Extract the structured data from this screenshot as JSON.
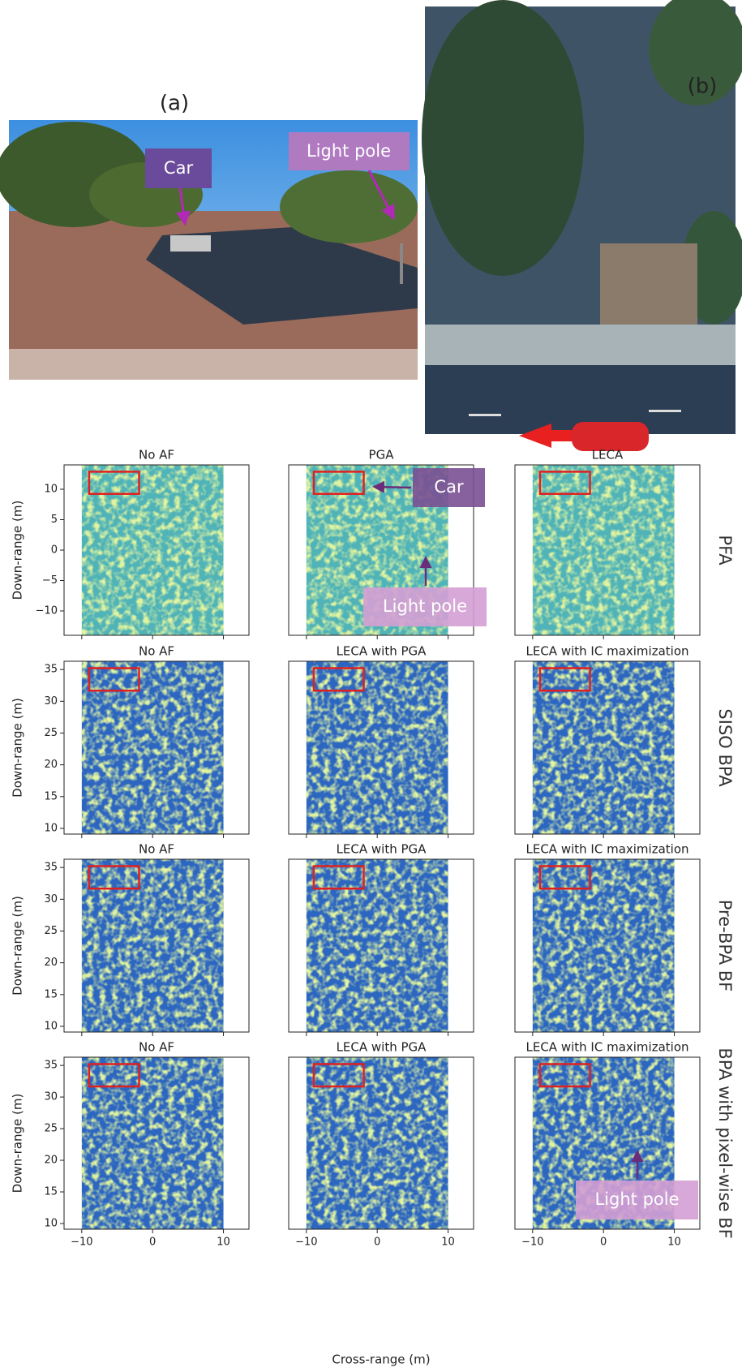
{
  "photos": {
    "a": {
      "label": "(a)",
      "annotations": [
        "Car",
        "Light pole"
      ]
    },
    "b": {
      "label": "(b)"
    }
  },
  "xlabel": "Cross-range (m)",
  "ylabel": "Down-range (m)",
  "xlim": [
    -12.5,
    13.6
  ],
  "xticks": [
    {
      "value": -10,
      "label": "−10"
    },
    0,
    10
  ],
  "rows": [
    {
      "label": "PFA",
      "ylim": [
        -14,
        14
      ],
      "yticks": [
        10,
        5,
        0,
        {
          "value": -5,
          "label": "−5"
        },
        {
          "value": -10,
          "label": "−10"
        }
      ],
      "panels": [
        "No AF",
        "PGA",
        "LECA"
      ]
    },
    {
      "label": "SISO BPA",
      "ylim": [
        9.1,
        36.3
      ],
      "yticks": [
        35,
        30,
        25,
        20,
        15,
        10
      ],
      "panels": [
        "No AF",
        "LECA with PGA",
        "LECA with IC maximization"
      ]
    },
    {
      "label": "Pre-BPA BF",
      "ylim": [
        9.1,
        36.3
      ],
      "yticks": [
        35,
        30,
        25,
        20,
        15,
        10
      ],
      "panels": [
        "No AF",
        "LECA with PGA",
        "LECA with IC maximization"
      ]
    },
    {
      "label": "BPA with pixel-wise BF",
      "ylim": [
        9.1,
        36.3
      ],
      "yticks": [
        35,
        30,
        25,
        20,
        15,
        10
      ],
      "panels": [
        "No AF",
        "LECA with PGA",
        "LECA with IC maximization"
      ]
    }
  ],
  "annotations": [
    "Car",
    "Light pole",
    "Light pole"
  ]
}
